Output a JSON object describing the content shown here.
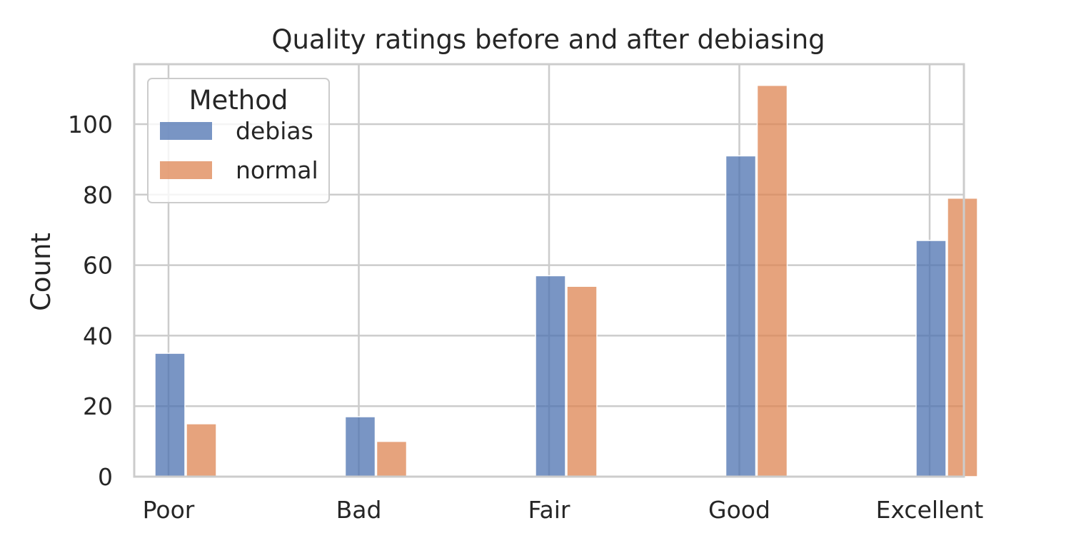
{
  "chart_data": {
    "type": "bar",
    "title": "Quality ratings before and after debiasing",
    "xlabel": "",
    "ylabel": "Count",
    "ylim": [
      0,
      117
    ],
    "yticks": [
      0,
      20,
      40,
      60,
      80,
      100
    ],
    "grid": true,
    "categories": [
      "Poor",
      "Bad",
      "Fair",
      "Good",
      "Excellent"
    ],
    "legend": {
      "title": "Method",
      "placement": "top-left"
    },
    "series": [
      {
        "name": "debias",
        "color": "#4c72b0",
        "values": [
          35,
          17,
          57,
          91,
          67
        ]
      },
      {
        "name": "normal",
        "color": "#dd8452",
        "values": [
          15,
          10,
          54,
          111,
          79
        ]
      }
    ]
  }
}
